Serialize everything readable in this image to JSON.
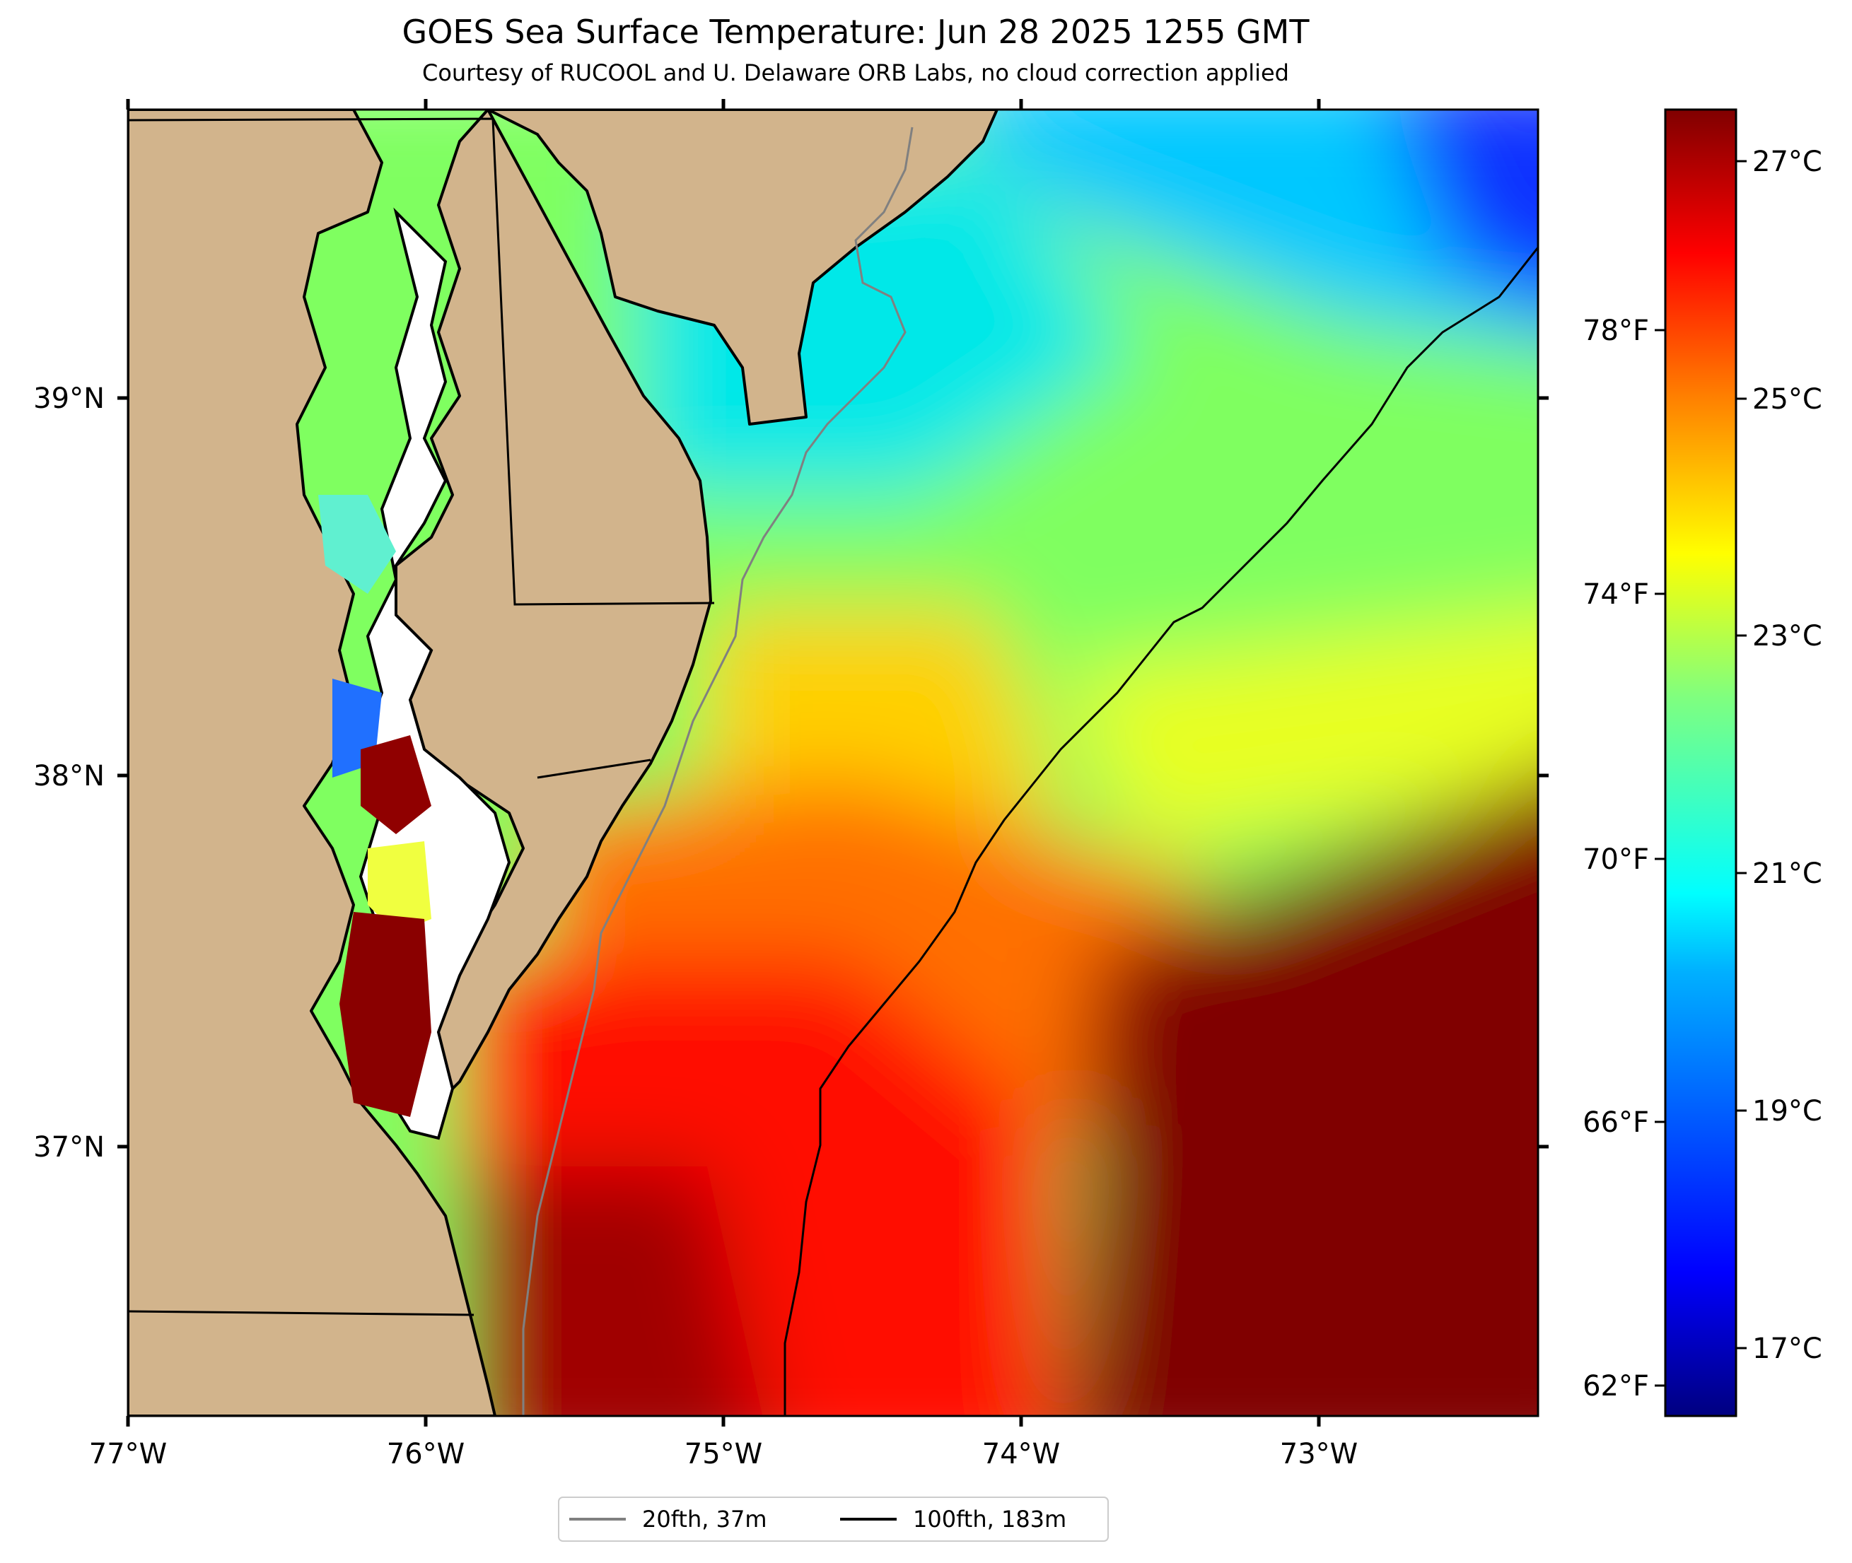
{
  "title": "GOES Sea Surface Temperature: Jun 28 2025 1255 GMT",
  "subtitle": "Courtesy of RUCOOL and U. Delaware ORB Labs, no cloud correction applied",
  "map": {
    "lon_ticks": [
      "77°W",
      "76°W",
      "75°W",
      "74°W",
      "73°W"
    ],
    "lat_ticks": [
      "39°N",
      "38°N",
      "37°N"
    ],
    "colors": {
      "land": "#D2B48C",
      "missing": "#FFFFFF",
      "coast": "#000000"
    }
  },
  "colorbar": {
    "celsius_ticks": [
      "27°C",
      "25°C",
      "23°C",
      "21°C",
      "19°C",
      "17°C"
    ],
    "fahrenheit_ticks": [
      "78°F",
      "74°F",
      "70°F",
      "66°F",
      "62°F"
    ],
    "colormap": [
      "#000080",
      "#0000FF",
      "#00B0FF",
      "#00FFFF",
      "#7FFF7F",
      "#FFFF00",
      "#FF8000",
      "#FF0000",
      "#800000"
    ]
  },
  "legend": [
    {
      "label": "20fth, 37m",
      "color": "#808080"
    },
    {
      "label": "100fth, 183m",
      "color": "#000000"
    }
  ]
}
